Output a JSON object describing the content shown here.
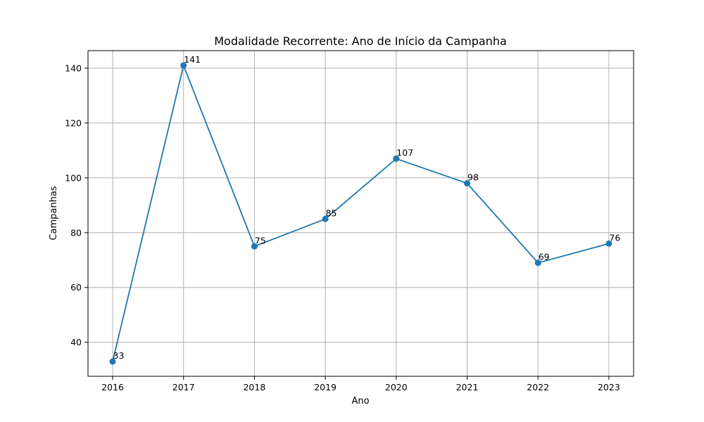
{
  "chart_data": {
    "type": "line",
    "title": "Modalidade Recorrente: Ano de Início da Campanha",
    "xlabel": "Ano",
    "ylabel": "Campanhas",
    "x": [
      "2016",
      "2017",
      "2018",
      "2019",
      "2020",
      "2021",
      "2022",
      "2023"
    ],
    "series": [
      {
        "values": [
          33,
          141,
          75,
          85,
          107,
          98,
          69,
          76
        ],
        "color": "#1f77b4"
      }
    ],
    "data_labels": [
      "33",
      "141",
      "75",
      "85",
      "107",
      "98",
      "69",
      "76"
    ],
    "yticks": [
      "40",
      "60",
      "80",
      "100",
      "120",
      "140"
    ],
    "ylim": [
      27.6,
      146.4
    ],
    "grid": true,
    "markers": true
  }
}
